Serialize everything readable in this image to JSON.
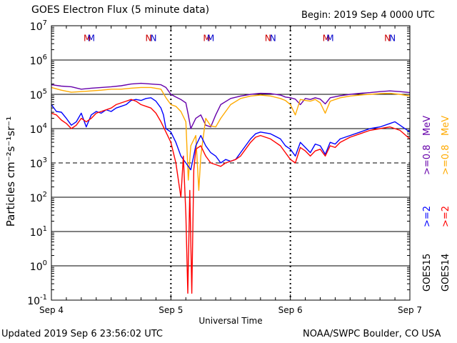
{
  "header": {
    "title": "GOES Electron Flux (5 minute data)",
    "begin": "Begin: 2019 Sep 4 0000 UTC"
  },
  "footer": {
    "updated": "Updated 2019 Sep  6 23:56:02 UTC",
    "credit": "NOAA/SWPC Boulder, CO USA"
  },
  "colors": {
    "goes15_low": "#6600aa",
    "goes14_low": "#ffaa00",
    "goes15_high": "#0000ff",
    "goes14_high": "#ff0000"
  },
  "chart_data": {
    "type": "line",
    "title": "GOES Electron Flux (5 minute data)",
    "xlabel": "Universal Time",
    "ylabel": "Particles cm⁻²s⁻¹sr⁻¹",
    "x_ticks": [
      "Sep 4",
      "Sep 5",
      "Sep 6",
      "Sep 7"
    ],
    "x_unit": "hours since 2019 Sep 4 0000 UTC",
    "xlim": [
      0,
      72
    ],
    "y_scale": "log",
    "ylim_exponent": [
      -1,
      7
    ],
    "y_tick_base": "10",
    "y_tick_exponents": [
      "-1",
      "0",
      "1",
      "2",
      "3",
      "4",
      "5",
      "6",
      "7"
    ],
    "grid": "horizontal at each decade; dashed at 10^3",
    "magnetopause_markers": [
      {
        "label": "M",
        "hour": 7.2,
        "color": "#cc0000"
      },
      {
        "label": "M",
        "hour": 8.0,
        "color": "#0000cc"
      },
      {
        "label": "N",
        "hour": 19.5,
        "color": "#cc0000"
      },
      {
        "label": "N",
        "hour": 20.5,
        "color": "#0000cc"
      },
      {
        "label": "M",
        "hour": 31.2,
        "color": "#cc0000"
      },
      {
        "label": "M",
        "hour": 32.0,
        "color": "#0000cc"
      },
      {
        "label": "N",
        "hour": 43.5,
        "color": "#cc0000"
      },
      {
        "label": "N",
        "hour": 44.5,
        "color": "#0000cc"
      },
      {
        "label": "M",
        "hour": 55.2,
        "color": "#cc0000"
      },
      {
        "label": "M",
        "hour": 56.0,
        "color": "#0000cc"
      },
      {
        "label": "N",
        "hour": 67.5,
        "color": "#cc0000"
      },
      {
        "label": "N",
        "hour": 68.5,
        "color": "#0000cc"
      }
    ],
    "legend": {
      "placement": "right, vertical",
      "goes15": "GOES15",
      "goes14": "GOES14",
      "e2": ">=2",
      "e08": ">=0.8",
      "mev": "MeV"
    },
    "series": [
      {
        "name": "GOES15 >=0.8 MeV",
        "color": "#6600aa",
        "log_values": [
          [
            0,
            5.28
          ],
          [
            2,
            5.24
          ],
          [
            4,
            5.22
          ],
          [
            6,
            5.15
          ],
          [
            8,
            5.18
          ],
          [
            10,
            5.2
          ],
          [
            12,
            5.22
          ],
          [
            14,
            5.25
          ],
          [
            16,
            5.3
          ],
          [
            18,
            5.32
          ],
          [
            20,
            5.3
          ],
          [
            22,
            5.28
          ],
          [
            23,
            5.2
          ],
          [
            24,
            5.0
          ],
          [
            25,
            4.92
          ],
          [
            26,
            4.85
          ],
          [
            27,
            4.75
          ],
          [
            27.5,
            4.4
          ],
          [
            28,
            4.0
          ],
          [
            29,
            4.3
          ],
          [
            30,
            4.4
          ],
          [
            31,
            4.1
          ],
          [
            32,
            4.05
          ],
          [
            33,
            4.4
          ],
          [
            34,
            4.7
          ],
          [
            36,
            4.88
          ],
          [
            38,
            4.95
          ],
          [
            40,
            5.0
          ],
          [
            42,
            5.03
          ],
          [
            44,
            5.02
          ],
          [
            46,
            4.98
          ],
          [
            47,
            4.92
          ],
          [
            48,
            4.9
          ],
          [
            49,
            4.86
          ],
          [
            50,
            4.7
          ],
          [
            51,
            4.88
          ],
          [
            52,
            4.85
          ],
          [
            53,
            4.9
          ],
          [
            54,
            4.86
          ],
          [
            55,
            4.72
          ],
          [
            56,
            4.9
          ],
          [
            58,
            4.96
          ],
          [
            60,
            5.0
          ],
          [
            62,
            5.03
          ],
          [
            64,
            5.05
          ],
          [
            66,
            5.08
          ],
          [
            68,
            5.1
          ],
          [
            70,
            5.08
          ],
          [
            72,
            5.05
          ]
        ]
      },
      {
        "name": "GOES14 >=0.8 MeV",
        "color": "#ffaa00",
        "log_values": [
          [
            0,
            5.2
          ],
          [
            2,
            5.12
          ],
          [
            4,
            5.06
          ],
          [
            6,
            5.08
          ],
          [
            8,
            5.1
          ],
          [
            10,
            5.12
          ],
          [
            12,
            5.15
          ],
          [
            14,
            5.15
          ],
          [
            16,
            5.18
          ],
          [
            18,
            5.2
          ],
          [
            20,
            5.2
          ],
          [
            22,
            5.15
          ],
          [
            23,
            4.9
          ],
          [
            24,
            4.7
          ],
          [
            25,
            4.65
          ],
          [
            26,
            4.5
          ],
          [
            27,
            4.2
          ],
          [
            27.5,
            2.5
          ],
          [
            28,
            3.5
          ],
          [
            29,
            3.8
          ],
          [
            29.6,
            2.2
          ],
          [
            30,
            3.2
          ],
          [
            31,
            4.3
          ],
          [
            32,
            4.08
          ],
          [
            33,
            4.05
          ],
          [
            34,
            4.3
          ],
          [
            36,
            4.7
          ],
          [
            38,
            4.88
          ],
          [
            40,
            4.95
          ],
          [
            42,
            4.98
          ],
          [
            44,
            4.95
          ],
          [
            46,
            4.88
          ],
          [
            47,
            4.82
          ],
          [
            48,
            4.7
          ],
          [
            49,
            4.4
          ],
          [
            50,
            4.85
          ],
          [
            51,
            4.82
          ],
          [
            52,
            4.8
          ],
          [
            53,
            4.85
          ],
          [
            54,
            4.75
          ],
          [
            55,
            4.45
          ],
          [
            56,
            4.8
          ],
          [
            58,
            4.9
          ],
          [
            60,
            4.95
          ],
          [
            62,
            4.98
          ],
          [
            64,
            5.0
          ],
          [
            66,
            5.02
          ],
          [
            68,
            5.03
          ],
          [
            70,
            5.0
          ],
          [
            72,
            4.95
          ]
        ]
      },
      {
        "name": "GOES15 >=2 MeV",
        "color": "#0000ff",
        "log_values": [
          [
            0,
            4.7
          ],
          [
            1,
            4.5
          ],
          [
            2,
            4.48
          ],
          [
            3,
            4.3
          ],
          [
            4,
            4.1
          ],
          [
            5,
            4.2
          ],
          [
            6,
            4.45
          ],
          [
            7,
            4.05
          ],
          [
            8,
            4.4
          ],
          [
            9,
            4.5
          ],
          [
            10,
            4.45
          ],
          [
            11,
            4.55
          ],
          [
            12,
            4.5
          ],
          [
            13,
            4.6
          ],
          [
            14,
            4.65
          ],
          [
            15,
            4.7
          ],
          [
            16,
            4.82
          ],
          [
            17,
            4.85
          ],
          [
            18,
            4.82
          ],
          [
            19,
            4.88
          ],
          [
            20,
            4.9
          ],
          [
            21,
            4.8
          ],
          [
            22,
            4.6
          ],
          [
            22.5,
            4.4
          ],
          [
            23,
            4.0
          ],
          [
            24,
            3.9
          ],
          [
            25,
            3.6
          ],
          [
            26,
            3.2
          ],
          [
            27,
            3.0
          ],
          [
            28,
            2.8
          ],
          [
            29,
            3.5
          ],
          [
            30,
            3.8
          ],
          [
            31,
            3.5
          ],
          [
            32,
            3.3
          ],
          [
            33,
            3.2
          ],
          [
            34,
            3.0
          ],
          [
            35,
            3.1
          ],
          [
            36,
            3.05
          ],
          [
            37,
            3.1
          ],
          [
            38,
            3.3
          ],
          [
            39,
            3.5
          ],
          [
            40,
            3.7
          ],
          [
            41,
            3.85
          ],
          [
            42,
            3.9
          ],
          [
            44,
            3.85
          ],
          [
            46,
            3.7
          ],
          [
            47,
            3.5
          ],
          [
            48,
            3.4
          ],
          [
            49,
            3.2
          ],
          [
            50,
            3.6
          ],
          [
            51,
            3.45
          ],
          [
            52,
            3.3
          ],
          [
            53,
            3.55
          ],
          [
            54,
            3.5
          ],
          [
            55,
            3.25
          ],
          [
            56,
            3.6
          ],
          [
            57,
            3.55
          ],
          [
            58,
            3.7
          ],
          [
            60,
            3.8
          ],
          [
            62,
            3.9
          ],
          [
            64,
            4.0
          ],
          [
            66,
            4.05
          ],
          [
            68,
            4.15
          ],
          [
            69,
            4.2
          ],
          [
            70,
            4.1
          ],
          [
            72,
            3.9
          ]
        ]
      },
      {
        "name": "GOES14 >=2 MeV",
        "color": "#ff0000",
        "log_values": [
          [
            0,
            4.45
          ],
          [
            1,
            4.4
          ],
          [
            2,
            4.25
          ],
          [
            3,
            4.15
          ],
          [
            4,
            4.0
          ],
          [
            5,
            4.1
          ],
          [
            6,
            4.3
          ],
          [
            7,
            4.2
          ],
          [
            8,
            4.3
          ],
          [
            9,
            4.45
          ],
          [
            10,
            4.5
          ],
          [
            11,
            4.55
          ],
          [
            12,
            4.6
          ],
          [
            13,
            4.7
          ],
          [
            14,
            4.75
          ],
          [
            15,
            4.8
          ],
          [
            16,
            4.85
          ],
          [
            17,
            4.8
          ],
          [
            18,
            4.7
          ],
          [
            19,
            4.65
          ],
          [
            20,
            4.6
          ],
          [
            21,
            4.45
          ],
          [
            22,
            4.2
          ],
          [
            23,
            3.9
          ],
          [
            24,
            3.6
          ],
          [
            25,
            3.0
          ],
          [
            26,
            2.0
          ],
          [
            26.5,
            3.2
          ],
          [
            27,
            1.5
          ],
          [
            27.4,
            -0.8
          ],
          [
            27.8,
            2.2
          ],
          [
            28.2,
            -0.8
          ],
          [
            28.6,
            2.8
          ],
          [
            29,
            3.4
          ],
          [
            30,
            3.5
          ],
          [
            31,
            3.2
          ],
          [
            32,
            3.0
          ],
          [
            33,
            2.95
          ],
          [
            34,
            2.9
          ],
          [
            35,
            3.0
          ],
          [
            36,
            3.05
          ],
          [
            37,
            3.1
          ],
          [
            38,
            3.2
          ],
          [
            39,
            3.4
          ],
          [
            40,
            3.6
          ],
          [
            41,
            3.75
          ],
          [
            42,
            3.8
          ],
          [
            44,
            3.7
          ],
          [
            46,
            3.5
          ],
          [
            47,
            3.3
          ],
          [
            48,
            3.1
          ],
          [
            49,
            3.0
          ],
          [
            50,
            3.45
          ],
          [
            51,
            3.35
          ],
          [
            52,
            3.2
          ],
          [
            53,
            3.35
          ],
          [
            54,
            3.4
          ],
          [
            55,
            3.2
          ],
          [
            56,
            3.5
          ],
          [
            57,
            3.45
          ],
          [
            58,
            3.6
          ],
          [
            60,
            3.75
          ],
          [
            62,
            3.85
          ],
          [
            64,
            3.95
          ],
          [
            66,
            4.0
          ],
          [
            68,
            4.05
          ],
          [
            69,
            4.0
          ],
          [
            70,
            3.95
          ],
          [
            72,
            3.7
          ]
        ]
      }
    ]
  }
}
